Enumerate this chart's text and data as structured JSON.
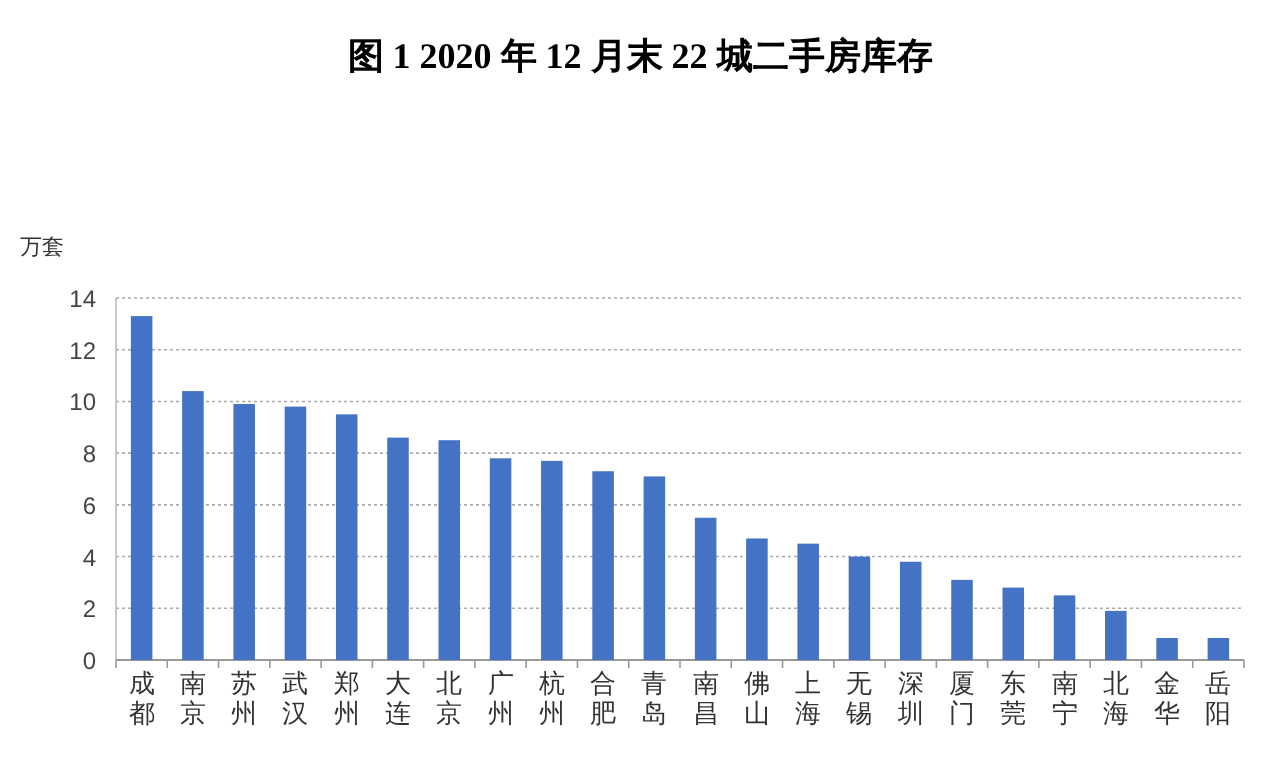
{
  "chart_data": {
    "type": "bar",
    "title": "图 1  2020 年 12 月末 22 城二手房库存",
    "ylabel": "万套",
    "categories": [
      "成都",
      "南京",
      "苏州",
      "武汉",
      "郑州",
      "大连",
      "北京",
      "广州",
      "杭州",
      "合肥",
      "青岛",
      "南昌",
      "佛山",
      "上海",
      "无锡",
      "深圳",
      "厦门",
      "东莞",
      "南宁",
      "北海",
      "金华",
      "岳阳"
    ],
    "values": [
      13.3,
      10.4,
      9.9,
      9.8,
      9.5,
      8.6,
      8.5,
      7.8,
      7.7,
      7.3,
      7.1,
      5.5,
      4.7,
      4.5,
      4.0,
      3.8,
      3.1,
      2.8,
      2.5,
      1.9,
      0.85,
      0.85
    ],
    "color": "#4472c4",
    "ylim": [
      0,
      14
    ],
    "yticks": [
      0,
      2,
      4,
      6,
      8,
      10,
      12,
      14
    ],
    "grid": "y"
  }
}
